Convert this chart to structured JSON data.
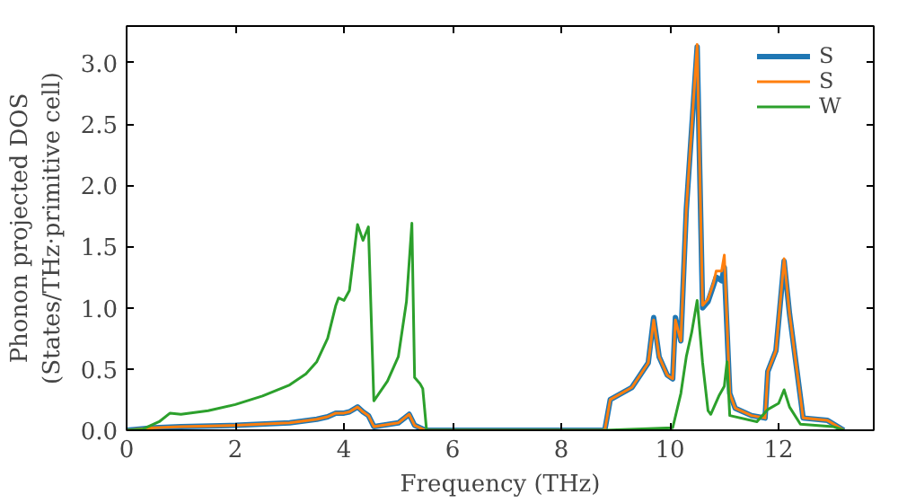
{
  "chart_data": {
    "type": "line",
    "xlabel": "Frequency (THz)",
    "ylabel": "Phonon projected DOS\n(States/THz·primitive cell)",
    "xlim": [
      0,
      13.75
    ],
    "ylim": [
      0,
      3.3
    ],
    "xticks": [
      0,
      2,
      4,
      6,
      8,
      10,
      12
    ],
    "yticks": [
      {
        "value": 0,
        "label": "0.0"
      },
      0.5,
      {
        "value": 1,
        "label": "1.0"
      },
      1.5,
      {
        "value": 2,
        "label": "2.0"
      },
      2.5,
      {
        "value": 3,
        "label": "3.0"
      }
    ],
    "grid": false,
    "legend": "top right",
    "marker": "none",
    "line_style": "solid",
    "series": [
      {
        "name": "S",
        "color": "#1f77b4",
        "x": [
          0,
          0.5,
          1.0,
          2.0,
          3.0,
          3.5,
          3.7,
          3.85,
          4.0,
          4.1,
          4.25,
          4.35,
          4.45,
          4.55,
          5.0,
          5.2,
          5.3,
          5.5,
          8.8,
          8.9,
          9.3,
          9.6,
          9.7,
          9.8,
          9.95,
          10.05,
          10.1,
          10.2,
          10.3,
          10.5,
          10.6,
          10.7,
          10.8,
          10.85,
          10.95,
          11.0,
          11.1,
          11.2,
          11.5,
          11.75,
          11.8,
          11.95,
          12.1,
          12.2,
          12.45,
          12.9,
          13.2
        ],
        "values": [
          0,
          0.02,
          0.03,
          0.04,
          0.06,
          0.09,
          0.11,
          0.14,
          0.14,
          0.15,
          0.19,
          0.15,
          0.12,
          0.03,
          0.06,
          0.13,
          0.04,
          0,
          0,
          0.25,
          0.35,
          0.55,
          0.92,
          0.6,
          0.45,
          0.42,
          0.92,
          0.73,
          1.8,
          3.13,
          1.0,
          1.05,
          1.18,
          1.25,
          1.22,
          1.33,
          0.3,
          0.18,
          0.12,
          0.1,
          0.48,
          0.65,
          1.38,
          0.95,
          0.1,
          0.08,
          0
        ]
      },
      {
        "name": "S",
        "color": "#ff7f0e",
        "x": [
          0,
          0.5,
          1.0,
          2.0,
          3.0,
          3.5,
          3.7,
          3.85,
          4.0,
          4.1,
          4.25,
          4.35,
          4.45,
          4.55,
          5.0,
          5.2,
          5.3,
          5.5,
          8.8,
          8.9,
          9.3,
          9.6,
          9.7,
          9.8,
          9.95,
          10.05,
          10.1,
          10.2,
          10.3,
          10.5,
          10.6,
          10.7,
          10.8,
          10.85,
          10.95,
          11.0,
          11.1,
          11.2,
          11.5,
          11.75,
          11.8,
          11.95,
          12.1,
          12.2,
          12.45,
          12.9,
          13.2
        ],
        "values": [
          0,
          0.02,
          0.03,
          0.04,
          0.06,
          0.09,
          0.11,
          0.14,
          0.14,
          0.15,
          0.19,
          0.15,
          0.12,
          0.03,
          0.06,
          0.13,
          0.04,
          0,
          0,
          0.25,
          0.35,
          0.55,
          0.9,
          0.6,
          0.45,
          0.42,
          0.9,
          0.73,
          1.8,
          3.15,
          1.02,
          1.07,
          1.2,
          1.3,
          1.3,
          1.43,
          0.3,
          0.18,
          0.12,
          0.1,
          0.48,
          0.65,
          1.4,
          0.95,
          0.1,
          0.08,
          0
        ]
      },
      {
        "name": "W",
        "color": "#2ca02c",
        "x": [
          0,
          0.3,
          0.6,
          0.8,
          1.0,
          1.5,
          2.0,
          2.5,
          3.0,
          3.3,
          3.5,
          3.7,
          3.85,
          3.9,
          4.0,
          4.1,
          4.25,
          4.35,
          4.45,
          4.55,
          4.8,
          5.0,
          5.15,
          5.25,
          5.3,
          5.4,
          5.45,
          5.52,
          8.8,
          10.05,
          10.2,
          10.3,
          10.4,
          10.5,
          10.6,
          10.7,
          10.75,
          10.9,
          11.0,
          11.05,
          11.1,
          11.6,
          11.8,
          12.0,
          12.1,
          12.2,
          12.4,
          13.0,
          13.2
        ],
        "values": [
          0,
          0.01,
          0.07,
          0.14,
          0.13,
          0.16,
          0.21,
          0.28,
          0.37,
          0.46,
          0.56,
          0.75,
          1.02,
          1.08,
          1.06,
          1.14,
          1.68,
          1.55,
          1.66,
          0.24,
          0.4,
          0.6,
          1.05,
          1.69,
          0.43,
          0.38,
          0.34,
          0,
          0,
          0.02,
          0.3,
          0.6,
          0.8,
          1.06,
          0.55,
          0.16,
          0.13,
          0.28,
          0.36,
          0.56,
          0.12,
          0.07,
          0.17,
          0.22,
          0.33,
          0.19,
          0.05,
          0.03,
          0
        ]
      }
    ]
  }
}
